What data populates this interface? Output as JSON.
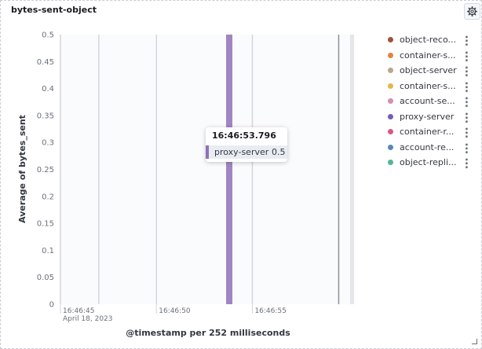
{
  "panel": {
    "title": "bytes-sent-object",
    "settings_icon": "gear-icon"
  },
  "chart_data": {
    "type": "bar",
    "ylabel": "Average of bytes_sent",
    "xlabel": "@timestamp per 252 milliseconds",
    "ylim": [
      0,
      0.5
    ],
    "y_ticks": [
      "0",
      "0.05",
      "0.1",
      "0.15",
      "0.2",
      "0.25",
      "0.3",
      "0.35",
      "0.4",
      "0.45",
      "0.5"
    ],
    "x_ticks": [
      {
        "label": "16:46:45",
        "sublabel": "April 18, 2023",
        "t": 45
      },
      {
        "label": "16:46:50",
        "sublabel": "",
        "t": 50
      },
      {
        "label": "16:46:55",
        "sublabel": "",
        "t": 55
      }
    ],
    "x_range_seconds": [
      45,
      60.3
    ],
    "gridlines_seconds": [
      45,
      47,
      50,
      55,
      59.5
    ],
    "series": [
      {
        "name": "proxy-server",
        "color": "#9170b8",
        "points": [
          {
            "x": "16:46:53.796",
            "t": 53.796,
            "y": 0.5
          }
        ]
      }
    ],
    "legend": [
      {
        "label": "object-reco...",
        "color": "#a0523b"
      },
      {
        "label": "container-s...",
        "color": "#e7813d"
      },
      {
        "label": "object-server",
        "color": "#b9a888"
      },
      {
        "label": "container-s...",
        "color": "#e2b84b"
      },
      {
        "label": "account-se...",
        "color": "#d28fb2"
      },
      {
        "label": "proxy-server",
        "color": "#7a5bb3"
      },
      {
        "label": "container-r...",
        "color": "#d6588a"
      },
      {
        "label": "account-re...",
        "color": "#5489b6"
      },
      {
        "label": "object-repli...",
        "color": "#54b399"
      }
    ],
    "legend_position": "right",
    "tooltip": {
      "title": "16:46:53.796",
      "series": "proxy-server",
      "value": "0.5",
      "color": "#9170b8"
    }
  }
}
